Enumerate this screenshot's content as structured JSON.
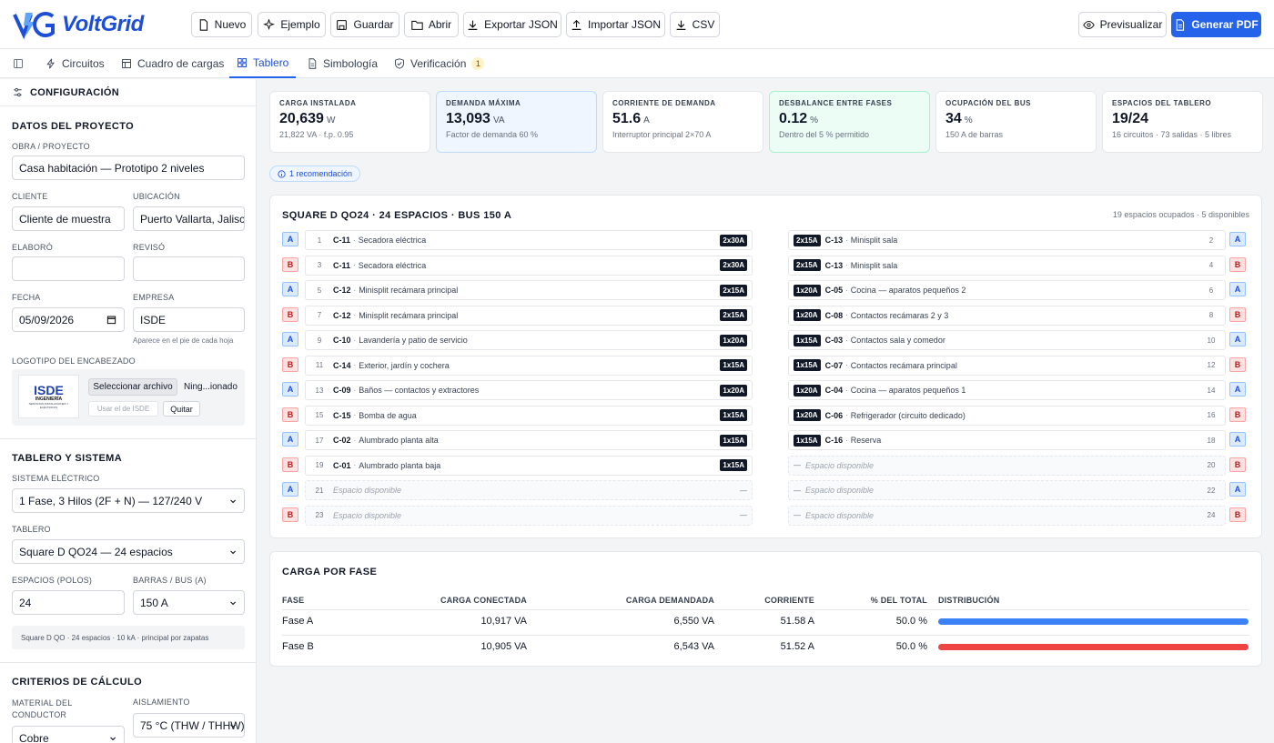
{
  "app": {
    "name": "VoltGrid"
  },
  "toolbar": {
    "nuevo": "Nuevo",
    "ejemplo": "Ejemplo",
    "guardar": "Guardar",
    "abrir": "Abrir",
    "exportar": "Exportar JSON",
    "importar": "Importar JSON",
    "csv": "CSV",
    "previsualizar": "Previsualizar",
    "generar": "Generar PDF"
  },
  "tabs": {
    "circuitos": "Circuitos",
    "cuadro": "Cuadro de cargas",
    "tablero": "Tablero",
    "simbologia": "Simbología",
    "verificacion": "Verificación",
    "verificacion_count": "1"
  },
  "sidebar": {
    "header": "CONFIGURACIÓN",
    "datos_title": "DATOS DEL PROYECTO",
    "obra_label": "OBRA / PROYECTO",
    "obra": "Casa habitación — Prototipo 2 niveles",
    "cliente_label": "CLIENTE",
    "cliente": "Cliente de muestra",
    "ubicacion_label": "UBICACIÓN",
    "ubicacion": "Puerto Vallarta, Jalisco",
    "elaboro_label": "ELABORÓ",
    "reviso_label": "REVISÓ",
    "fecha_label": "FECHA",
    "fecha": "05/09/2026",
    "empresa_label": "EMPRESA",
    "empresa": "ISDE",
    "empresa_hint": "Aparece en el pie de cada hoja",
    "logo_label": "LOGOTIPO DEL ENCABEZADO",
    "logo_text": "ISDE",
    "logo_sub": "INGENIERÍA",
    "logo_sub2": "SERVICIOS INSTALACIONES Y ELÉCTRICOS",
    "file_btn": "Seleccionar archivo",
    "file_name": "Ning...ionado",
    "usar_isde": "Usar el de ISDE",
    "quitar": "Quitar",
    "tablero_title": "TABLERO Y SISTEMA",
    "sistema_label": "SISTEMA ELÉCTRICO",
    "sistema": "1 Fase, 3 Hilos (2F + N) — 127/240 V",
    "tablero_label": "TABLERO",
    "tablero": "Square D QO24 — 24 espacios",
    "espacios_label": "ESPACIOS (POLOS)",
    "espacios": "24",
    "barras_label": "BARRAS / BUS (A)",
    "barras": "150 A",
    "tablero_info": "Square D QO · 24 espacios · 10 kA · principal por zapatas",
    "criterios_title": "CRITERIOS DE CÁLCULO",
    "material_label": "MATERIAL DEL CONDUCTOR",
    "material": "Cobre",
    "aislamiento_label": "AISLAMIENTO",
    "aislamiento": "75 °C (THW / THHW)"
  },
  "cards": [
    {
      "title": "CARGA INSTALADA",
      "value": "20,639",
      "unit": "W",
      "sub": "21,822 VA · f.p. 0.95"
    },
    {
      "title": "DEMANDA MÁXIMA",
      "value": "13,093",
      "unit": "VA",
      "sub": "Factor de demanda 60 %"
    },
    {
      "title": "CORRIENTE DE DEMANDA",
      "value": "51.6",
      "unit": "A",
      "sub": "Interruptor principal 2×70 A"
    },
    {
      "title": "DESBALANCE ENTRE FASES",
      "value": "0.12",
      "unit": "%",
      "sub": "Dentro del 5 % permitido"
    },
    {
      "title": "OCUPACIÓN DEL BUS",
      "value": "34",
      "unit": "%",
      "sub": "150 A de barras"
    },
    {
      "title": "ESPACIOS DEL TABLERO",
      "value": "19/24",
      "unit": "",
      "sub": "16 circuitos · 73 salidas · 5 libres"
    }
  ],
  "recomendacion": "1 recomendación",
  "panel": {
    "title": "SQUARE D QO24 · 24 ESPACIOS · BUS 150 A",
    "summary": "19 espacios ocupados · 5 disponibles",
    "left": [
      {
        "n": "1",
        "c": "C-11",
        "d": "Secadora eléctrica",
        "b": "2x30A",
        "ph": "A"
      },
      {
        "n": "3",
        "c": "C-11",
        "d": "Secadora eléctrica",
        "b": "2x30A",
        "ph": "B"
      },
      {
        "n": "5",
        "c": "C-12",
        "d": "Minisplit recámara principal",
        "b": "2x15A",
        "ph": "A"
      },
      {
        "n": "7",
        "c": "C-12",
        "d": "Minisplit recámara principal",
        "b": "2x15A",
        "ph": "B"
      },
      {
        "n": "9",
        "c": "C-10",
        "d": "Lavandería y patio de servicio",
        "b": "1x20A",
        "ph": "A"
      },
      {
        "n": "11",
        "c": "C-14",
        "d": "Exterior, jardín y cochera",
        "b": "1x15A",
        "ph": "B"
      },
      {
        "n": "13",
        "c": "C-09",
        "d": "Baños — contactos y extractores",
        "b": "1x20A",
        "ph": "A"
      },
      {
        "n": "15",
        "c": "C-15",
        "d": "Bomba de agua",
        "b": "1x15A",
        "ph": "B"
      },
      {
        "n": "17",
        "c": "C-02",
        "d": "Alumbrado planta alta",
        "b": "1x15A",
        "ph": "A"
      },
      {
        "n": "19",
        "c": "C-01",
        "d": "Alumbrado planta baja",
        "b": "1x15A",
        "ph": "B"
      },
      {
        "n": "21",
        "c": "",
        "d": "Espacio disponible",
        "b": "—",
        "ph": "A"
      },
      {
        "n": "23",
        "c": "",
        "d": "Espacio disponible",
        "b": "—",
        "ph": "B"
      }
    ],
    "right": [
      {
        "n": "2",
        "c": "C-13",
        "d": "Minisplit sala",
        "b": "2x15A",
        "ph": "A"
      },
      {
        "n": "4",
        "c": "C-13",
        "d": "Minisplit sala",
        "b": "2x15A",
        "ph": "B"
      },
      {
        "n": "6",
        "c": "C-05",
        "d": "Cocina — aparatos pequeños 2",
        "b": "1x20A",
        "ph": "A"
      },
      {
        "n": "8",
        "c": "C-08",
        "d": "Contactos recámaras 2 y 3",
        "b": "1x20A",
        "ph": "B"
      },
      {
        "n": "10",
        "c": "C-03",
        "d": "Contactos sala y comedor",
        "b": "1x15A",
        "ph": "A"
      },
      {
        "n": "12",
        "c": "C-07",
        "d": "Contactos recámara principal",
        "b": "1x15A",
        "ph": "B"
      },
      {
        "n": "14",
        "c": "C-04",
        "d": "Cocina — aparatos pequeños 1",
        "b": "1x20A",
        "ph": "A"
      },
      {
        "n": "16",
        "c": "C-06",
        "d": "Refrigerador (circuito dedicado)",
        "b": "1x20A",
        "ph": "B"
      },
      {
        "n": "18",
        "c": "C-16",
        "d": "Reserva",
        "b": "1x15A",
        "ph": "A"
      },
      {
        "n": "20",
        "c": "",
        "d": "Espacio disponible",
        "b": "—",
        "ph": "B"
      },
      {
        "n": "22",
        "c": "",
        "d": "Espacio disponible",
        "b": "—",
        "ph": "A"
      },
      {
        "n": "24",
        "c": "",
        "d": "Espacio disponible",
        "b": "—",
        "ph": "B"
      }
    ]
  },
  "phase_table": {
    "title": "CARGA POR FASE",
    "headers": [
      "FASE",
      "CARGA CONECTADA",
      "CARGA DEMANDADA",
      "CORRIENTE",
      "% DEL TOTAL",
      "DISTRIBUCIÓN"
    ],
    "rows": [
      {
        "fase": "Fase A",
        "conectada": "10,917 VA",
        "demandada": "6,550 VA",
        "corriente": "51.58 A",
        "pct": "50.0 %",
        "dist": 0.5,
        "color": "#3b82f6"
      },
      {
        "fase": "Fase B",
        "conectada": "10,905 VA",
        "demandada": "6,543 VA",
        "corriente": "51.52 A",
        "pct": "50.0 %",
        "dist": 0.5,
        "color": "#ef4444"
      }
    ]
  }
}
